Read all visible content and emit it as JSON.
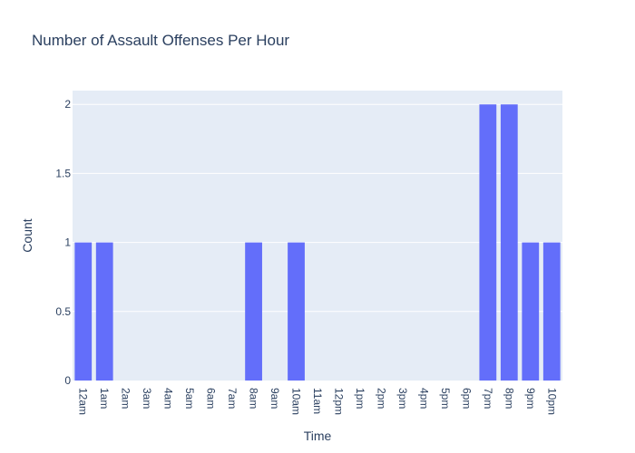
{
  "chart_data": {
    "type": "bar",
    "title": "Number of Assault Offenses Per Hour",
    "xlabel": "Time",
    "ylabel": "Count",
    "categories": [
      "12am",
      "1am",
      "2am",
      "3am",
      "4am",
      "5am",
      "6am",
      "7am",
      "8am",
      "9am",
      "10am",
      "11am",
      "12pm",
      "1pm",
      "2pm",
      "3pm",
      "4pm",
      "5pm",
      "6pm",
      "7pm",
      "8pm",
      "9pm",
      "10pm"
    ],
    "values": [
      1,
      1,
      0,
      0,
      0,
      0,
      0,
      0,
      1,
      0,
      1,
      0,
      0,
      0,
      0,
      0,
      0,
      0,
      0,
      2,
      2,
      1,
      1
    ],
    "ylim": [
      0,
      2.1
    ],
    "yticks": [
      0,
      0.5,
      1,
      1.5,
      2
    ],
    "ytick_labels": [
      "0",
      "0.5",
      "1",
      "1.5",
      "2"
    ],
    "grid": true,
    "colors": {
      "bar": "#636efa",
      "plot_bg": "#e5ecf6",
      "grid": "#ffffff",
      "text": "#2a3f5f"
    }
  }
}
